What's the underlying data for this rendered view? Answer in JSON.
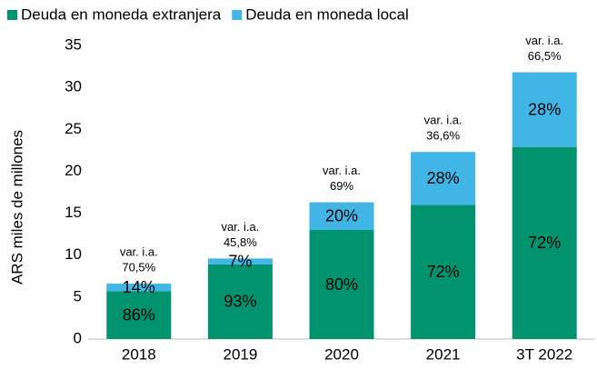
{
  "chart_data": {
    "type": "stacked_bar",
    "y_label": "ARS miles de millones",
    "categories": [
      "2018",
      "2019",
      "2020",
      "2021",
      "3T 2022"
    ],
    "series": [
      {
        "name": "Deuda en moneda extranjera",
        "color": "#00936e",
        "values": [
          5.7,
          8.9,
          13.0,
          16.0,
          22.9
        ],
        "segment_labels": [
          "86%",
          "93%",
          "80%",
          "72%",
          "72%"
        ]
      },
      {
        "name": "Deuda en moneda local",
        "color": "#41b6e6",
        "values": [
          0.9,
          0.7,
          3.3,
          6.3,
          8.9
        ],
        "segment_labels": [
          "14%",
          "7%",
          "20%",
          "28%",
          "28%"
        ]
      }
    ],
    "annotations": [
      [
        "var. i.a.",
        "70,5%"
      ],
      [
        "var. i.a.",
        "45,8%"
      ],
      [
        "var. i.a.",
        "69%"
      ],
      [
        "var. i.a.",
        "36,6%"
      ],
      [
        "var. i.a.",
        "66,5%"
      ]
    ],
    "ylim": [
      0,
      35
    ],
    "yticks": [
      0,
      5,
      10,
      15,
      20,
      25,
      30,
      35
    ],
    "legend": "top"
  }
}
